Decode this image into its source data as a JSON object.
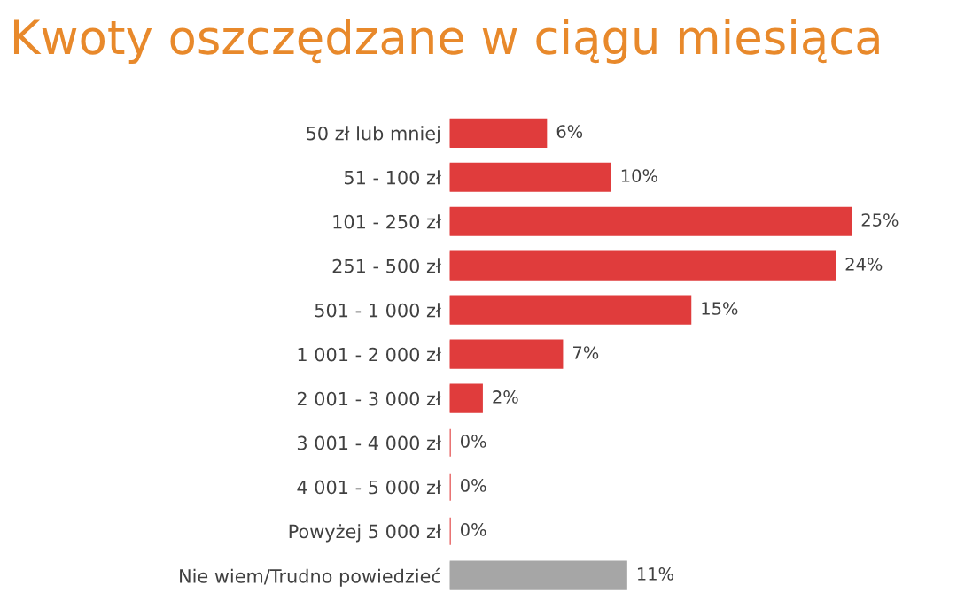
{
  "chart_data": {
    "type": "bar",
    "orientation": "horizontal",
    "title": "Kwoty oszczędzane w ciągu miesiąca",
    "categories": [
      "50 zł lub mniej",
      "51 - 100 zł",
      "101 - 250 zł",
      "251 - 500 zł",
      "501 - 1 000 zł",
      "1 001 - 2 000 zł",
      "2 001 - 3 000 zł",
      "3 001 - 4 000 zł",
      "4 001 - 5 000 zł",
      "Powyżej 5 000 zł",
      "Nie wiem/Trudno powiedzieć"
    ],
    "values": [
      6,
      10,
      25,
      24,
      15,
      7,
      2,
      0,
      0,
      0,
      11
    ],
    "colors": [
      "#e03c3c",
      "#e03c3c",
      "#e03c3c",
      "#e03c3c",
      "#e03c3c",
      "#e03c3c",
      "#e03c3c",
      "#e03c3c",
      "#e03c3c",
      "#e03c3c",
      "#a6a6a6"
    ],
    "value_labels": [
      "6%",
      "10%",
      "25%",
      "24%",
      "15%",
      "7%",
      "2%",
      "0%",
      "0%",
      "0%",
      "11%"
    ],
    "grid": false,
    "legend": false,
    "tick_labels": "y"
  }
}
